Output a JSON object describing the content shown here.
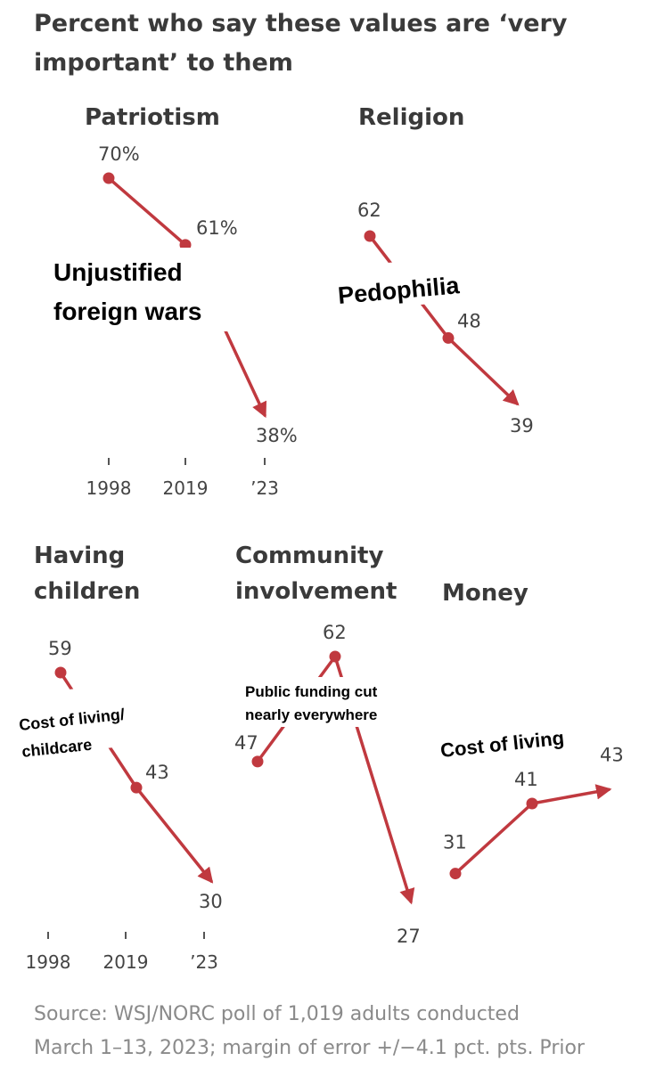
{
  "chart_data": {
    "type": "line",
    "title": "Percent who say these values are ‘very important’ to them",
    "panels": [
      {
        "name": "patriotism",
        "title_lines": [
          "Patriotism"
        ],
        "labels": [
          "70%",
          "61%",
          "38%"
        ],
        "values": [
          70,
          61,
          38
        ]
      },
      {
        "name": "religion",
        "title_lines": [
          "Religion"
        ],
        "labels": [
          "62",
          "48",
          "39"
        ],
        "values": [
          62,
          48,
          39
        ]
      },
      {
        "name": "having-children",
        "title_lines": [
          "Having",
          "children"
        ],
        "labels": [
          "59",
          "43",
          "30"
        ],
        "values": [
          59,
          43,
          30
        ]
      },
      {
        "name": "community-involvement",
        "title_lines": [
          "Community",
          "involvement"
        ],
        "labels": [
          "47",
          "62",
          "27"
        ],
        "values": [
          47,
          62,
          27
        ]
      },
      {
        "name": "money",
        "title_lines": [
          "Money"
        ],
        "labels": [
          "31",
          "41",
          "43"
        ],
        "values": [
          31,
          41,
          43
        ]
      }
    ],
    "x_ticks_top": [
      "1998",
      "2019",
      "’23"
    ],
    "x_ticks_bottom": [
      "1998",
      "2019",
      "’23"
    ],
    "annotations": [
      {
        "panel": "patriotism",
        "lines": [
          "Unjustified",
          "foreign wars"
        ]
      },
      {
        "panel": "religion",
        "lines": [
          "Pedophilia"
        ]
      },
      {
        "panel": "having-children",
        "lines": [
          "Cost of living/",
          "childcare"
        ]
      },
      {
        "panel": "community-involvement",
        "lines": [
          "Public funding cut",
          "nearly everywhere"
        ]
      },
      {
        "panel": "money",
        "lines": [
          "Cost of living"
        ]
      }
    ],
    "source_lines": [
      "Source: WSJ/NORC poll of 1,019 adults conducted",
      "March 1–13, 2023; margin of error +/−4.1 pct. pts. Prior"
    ],
    "colors": {
      "line": "#c0393f",
      "text": "#444444",
      "title": "#3a3a3a",
      "source": "#8a8a8a"
    }
  }
}
